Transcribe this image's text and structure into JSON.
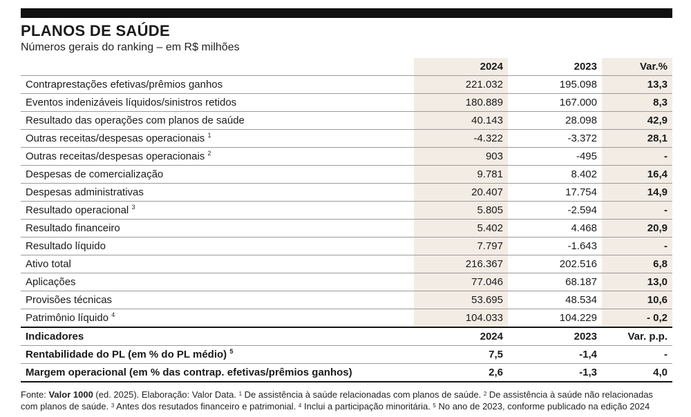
{
  "title": "PLANOS DE SAÚDE",
  "subtitle": "Números gerais do ranking – em R$ milhões",
  "header": {
    "col1": "2024",
    "col2": "2023",
    "col3": "Var.%"
  },
  "rows": [
    {
      "label": "Contraprestações efetivas/prêmios ganhos",
      "sup": "",
      "v2024": "221.032",
      "v2023": "195.098",
      "var": "13,3"
    },
    {
      "label": "Eventos indenizáveis líquidos/sinistros retidos",
      "sup": "",
      "v2024": "180.889",
      "v2023": "167.000",
      "var": "8,3"
    },
    {
      "label": "Resultado das operações com planos de saúde",
      "sup": "",
      "v2024": "40.143",
      "v2023": "28.098",
      "var": "42,9"
    },
    {
      "label": "Outras receitas/despesas operacionais",
      "sup": "1",
      "v2024": "-4.322",
      "v2023": "-3.372",
      "var": "28,1"
    },
    {
      "label": "Outras receitas/despesas operacionais",
      "sup": "2",
      "v2024": "903",
      "v2023": "-495",
      "var": "-"
    },
    {
      "label": "Despesas de comercialização",
      "sup": "",
      "v2024": "9.781",
      "v2023": "8.402",
      "var": "16,4"
    },
    {
      "label": "Despesas administrativas",
      "sup": "",
      "v2024": "20.407",
      "v2023": "17.754",
      "var": "14,9"
    },
    {
      "label": "Resultado operacional",
      "sup": "3",
      "v2024": "5.805",
      "v2023": "-2.594",
      "var": "-"
    },
    {
      "label": "Resultado financeiro",
      "sup": "",
      "v2024": "5.402",
      "v2023": "4.468",
      "var": "20,9"
    },
    {
      "label": "Resultado líquido",
      "sup": "",
      "v2024": "7.797",
      "v2023": "-1.643",
      "var": "-"
    },
    {
      "label": "Ativo total",
      "sup": "",
      "v2024": "216.367",
      "v2023": "202.516",
      "var": "6,8"
    },
    {
      "label": "Aplicações",
      "sup": "",
      "v2024": "77.046",
      "v2023": "68.187",
      "var": "13,0"
    },
    {
      "label": "Provisões técnicas",
      "sup": "",
      "v2024": "53.695",
      "v2023": "48.534",
      "var": "10,6"
    },
    {
      "label": "Patrimônio líquido",
      "sup": "4",
      "v2024": "104.033",
      "v2023": "104.229",
      "var": "- 0,2"
    }
  ],
  "indicators_header": {
    "label": "Indicadores",
    "col1": "2024",
    "col2": "2023",
    "col3": "Var. p.p."
  },
  "indicators": [
    {
      "label": "Rentabilidade do PL (em % do PL médio)",
      "sup": "5",
      "v2024": "7,5",
      "v2023": "-1,4",
      "var": "-"
    },
    {
      "label": "Margem operacional (em % das contrap. efetivas/prêmios ganhos)",
      "sup": "",
      "v2024": "2,6",
      "v2023": "-1,3",
      "var": "4,0"
    }
  ],
  "footer": {
    "prefix": "Fonte: ",
    "source_bold": "Valor 1000",
    "source_rest": " (ed. 2025). Elaboração: Valor Data. ",
    "notes": [
      {
        "sup": "1",
        "text": " De assistência à saúde relacionadas com planos de saúde. "
      },
      {
        "sup": "2",
        "text": " De assistência à saúde não relacionadas com planos de saúde. "
      },
      {
        "sup": "3",
        "text": " Antes dos resutados financeiro e patrimonial. "
      },
      {
        "sup": "4",
        "text": " Inclui a participação minoritária. "
      },
      {
        "sup": "5",
        "text": " No ano de 2023, conforme publicado na edição 2024"
      }
    ]
  }
}
